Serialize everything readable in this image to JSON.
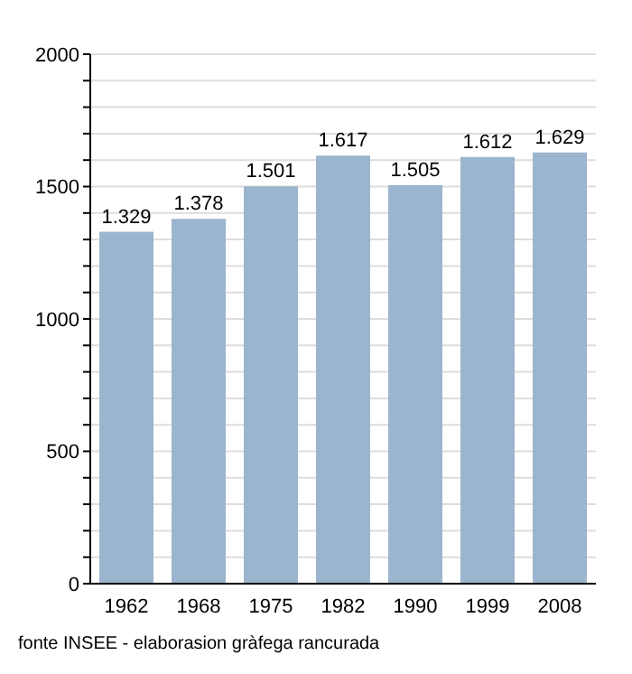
{
  "chart_data": {
    "type": "bar",
    "categories": [
      "1962",
      "1968",
      "1975",
      "1982",
      "1990",
      "1999",
      "2008"
    ],
    "values": [
      1329,
      1378,
      1501,
      1617,
      1505,
      1612,
      1629
    ],
    "value_labels": [
      "1.329",
      "1.378",
      "1.501",
      "1.617",
      "1.505",
      "1.612",
      "1.629"
    ],
    "color": "#9cb5ce",
    "ylim": [
      0,
      2000
    ],
    "yticks": [
      0,
      {
        "value": 100,
        "label": null
      },
      {
        "value": 200,
        "label": null
      },
      {
        "value": 300,
        "label": null
      },
      {
        "value": 400,
        "label": null
      },
      500,
      {
        "value": 600,
        "label": null
      },
      {
        "value": 700,
        "label": null
      },
      {
        "value": 800,
        "label": null
      },
      {
        "value": 900,
        "label": null
      },
      1000,
      {
        "value": 1100,
        "label": null
      },
      {
        "value": 1200,
        "label": null
      },
      {
        "value": 1300,
        "label": null
      },
      {
        "value": 1400,
        "label": null
      },
      1500,
      {
        "value": 1600,
        "label": null
      },
      {
        "value": 1700,
        "label": null
      },
      {
        "value": 1800,
        "label": null
      },
      {
        "value": 1900,
        "label": null
      },
      2000
    ],
    "grid": "y",
    "annotations": [
      "fonte INSEE - elaborasion gràfega rancurada"
    ]
  }
}
